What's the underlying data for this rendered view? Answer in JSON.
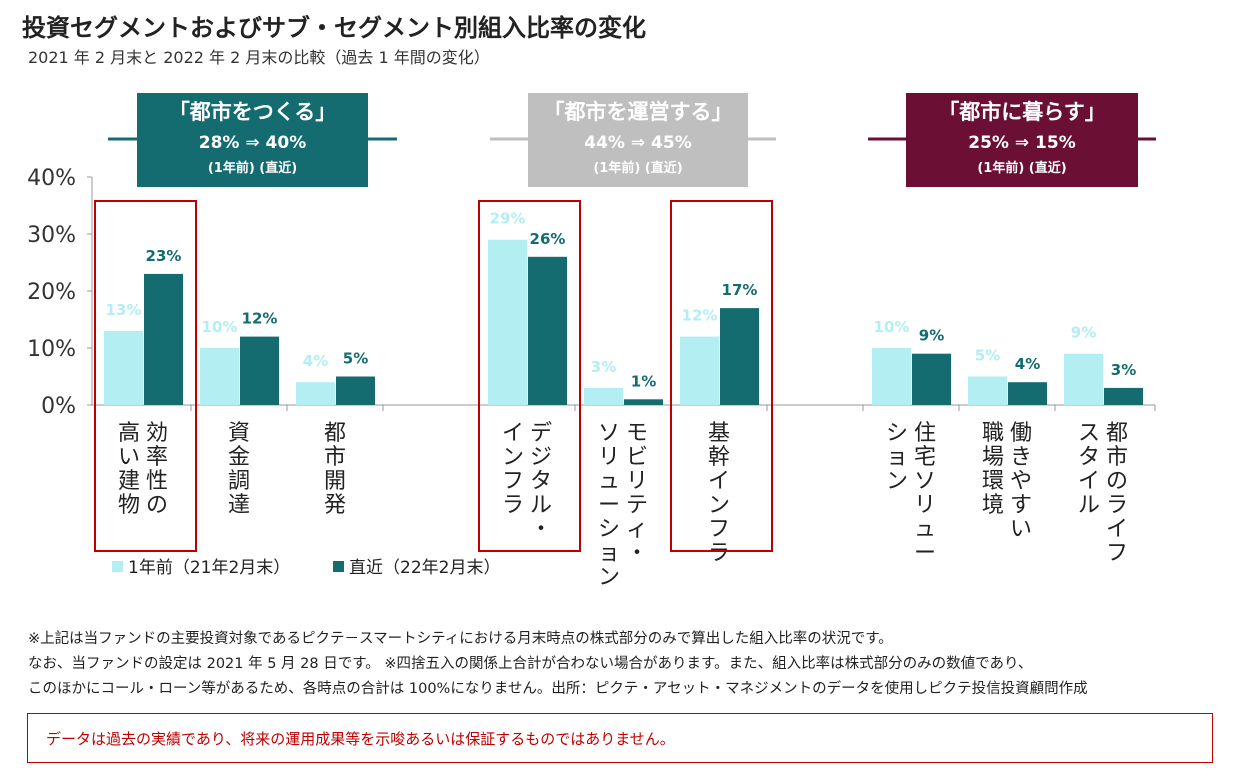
{
  "title": "投資セグメントおよびサブ・セグメント別組入比率の変化",
  "subtitle": "2021 年 2 月末と 2022 年 2 月末の比較（過去 1 年間の変化）",
  "colors": {
    "prev": "#b3eef2",
    "latest": "#146c70",
    "grid_axis": "#999999",
    "highlight": "#c00000"
  },
  "segments": [
    {
      "label": "「都市をつくる」",
      "change": "28% ⇒ 40%",
      "sub": "(1年前)  (直近)",
      "color": "#146c70"
    },
    {
      "label": "「都市を運営する」",
      "change": "44% ⇒ 45%",
      "sub": "(1年前)  (直近)",
      "color": "#bfbfbf"
    },
    {
      "label": "「都市に暮らす」",
      "change": "25% ⇒ 15%",
      "sub": "(1年前)  (直近)",
      "color": "#6b0f34"
    }
  ],
  "chart_data": {
    "type": "bar",
    "ylim": [
      0,
      40
    ],
    "yticks": [
      "0%",
      "10%",
      "20%",
      "30%",
      "40%"
    ],
    "categories": [
      {
        "label": "効率性の高い建物",
        "lines": [
          "効率性の",
          "高い建物"
        ],
        "segment": 0
      },
      {
        "label": "資金調達",
        "lines": [
          "資金調達"
        ],
        "segment": 0
      },
      {
        "label": "都市開発",
        "lines": [
          "都市開発"
        ],
        "segment": 0
      },
      {
        "label": "デジタル・インフラ",
        "lines": [
          "デジタル・",
          "インフラ"
        ],
        "segment": 1
      },
      {
        "label": "モビリティ・ソリューション",
        "lines": [
          "モビリティ・",
          "ソリューション"
        ],
        "segment": 1
      },
      {
        "label": "基幹インフラ",
        "lines": [
          "基幹インフラ"
        ],
        "segment": 1
      },
      {
        "label": "住宅ソリューション",
        "lines": [
          "住宅ソリュー",
          "ション"
        ],
        "segment": 2
      },
      {
        "label": "働きやすい職場環境",
        "lines": [
          "働きやすい",
          "職場環境"
        ],
        "segment": 2
      },
      {
        "label": "都市のライフスタイル",
        "lines": [
          "都市のライフ",
          "スタイル"
        ],
        "segment": 2
      }
    ],
    "series": [
      {
        "name": "1年前（21年2月末）",
        "values": [
          13,
          10,
          4,
          29,
          3,
          12,
          10,
          5,
          9
        ],
        "labels": [
          "13%",
          "10%",
          "4%",
          "29%",
          "3%",
          "12%",
          "10%",
          "5%",
          "9%"
        ]
      },
      {
        "name": "直近（22年2月末）",
        "values": [
          23,
          12,
          5,
          26,
          1,
          17,
          9,
          4,
          3
        ],
        "labels": [
          "23%",
          "12%",
          "5%",
          "26%",
          "1%",
          "17%",
          "9%",
          "4%",
          "3%"
        ]
      }
    ],
    "highlighted_categories": [
      0,
      3,
      5
    ],
    "grid": false,
    "legend_position": "bottom-left"
  },
  "notes": [
    "※上記は当ファンドの主要投資対象であるピクテ－スマートシティにおける月末時点の株式部分のみで算出した組入比率の状況です。",
    "なお、当ファンドの設定は 2021 年 5 月 28 日です。 ※四捨五入の関係上合計が合わない場合があります。また、組入比率は株式部分のみの数値であり、",
    "このほかにコール・ローン等があるため、各時点の合計は 100%になりません。出所：ピクテ・アセット・マネジメントのデータを使用しピクテ投信投資顧問作成"
  ],
  "disclaimer": "データは過去の実績であり、将来の運用成果等を示唆あるいは保証するものではありません。"
}
